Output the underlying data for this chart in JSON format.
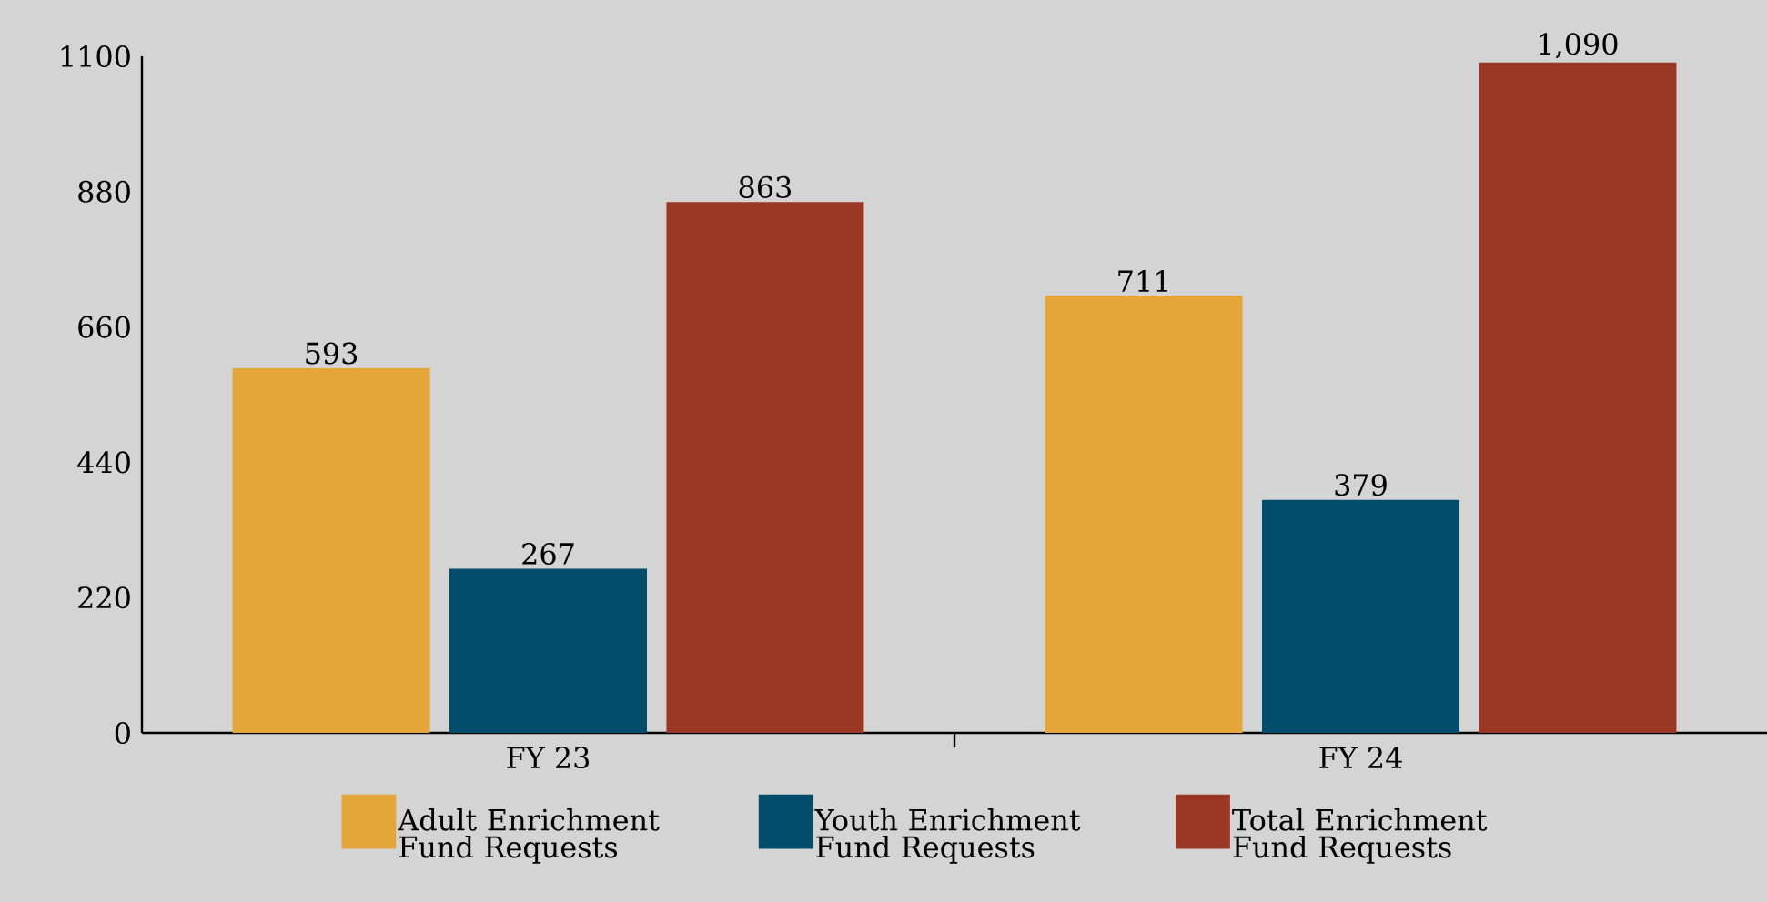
{
  "chart_data": {
    "type": "bar",
    "categories": [
      "FY 23",
      "FY 24"
    ],
    "series": [
      {
        "name": "Adult Enrichment Fund Requests",
        "color": "#e4a63a",
        "values": [
          593,
          711
        ],
        "value_labels": [
          "593",
          "711"
        ]
      },
      {
        "name": "Youth Enrichment Fund Requests",
        "color": "#014d6b",
        "values": [
          267,
          379
        ],
        "value_labels": [
          "267",
          "379"
        ]
      },
      {
        "name": "Total Enrichment Fund Requests",
        "color": "#9a3725",
        "values": [
          863,
          1090
        ],
        "value_labels": [
          "863",
          "1,090"
        ]
      }
    ],
    "ylim": [
      0,
      1100
    ],
    "yticks": [
      0,
      220,
      440,
      660,
      880,
      1100
    ],
    "grid": false,
    "legend": "bottom"
  }
}
